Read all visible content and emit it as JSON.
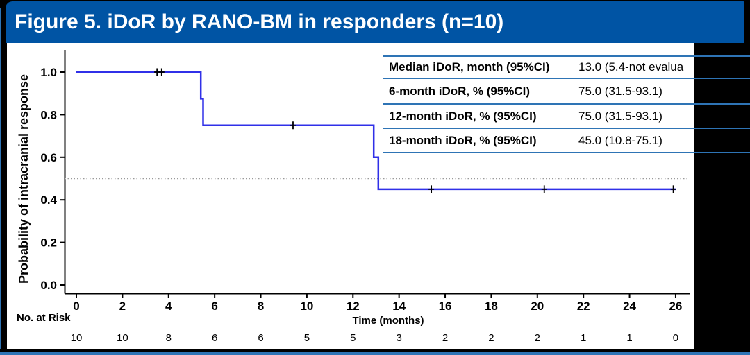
{
  "header": {
    "title": "Figure 5. iDoR by RANO-BM in responders (n=10)",
    "bar_color": "#0054A4",
    "text_color": "#FFFFFF"
  },
  "stats_table": {
    "rows": [
      {
        "label": "Median iDoR, month (95%CI)",
        "value": "13.0 (5.4-not evalua"
      },
      {
        "label": "6-month iDoR, % (95%CI)",
        "value": "75.0 (31.5-93.1)"
      },
      {
        "label": "12-month iDoR, % (95%CI)",
        "value": "75.0 (31.5-93.1)"
      },
      {
        "label": "18-month iDoR, % (95%CI)",
        "value": "45.0 (10.8-75.1)"
      }
    ],
    "line_color": "#2E74B5"
  },
  "chart_data": {
    "type": "line",
    "variant": "kaplan-meier-step",
    "title": "",
    "xlabel": "Time (months)",
    "ylabel": "Probability of intracranial response",
    "xlim": [
      0,
      26
    ],
    "ylim": [
      0.0,
      1.0
    ],
    "grid": false,
    "legend": "none",
    "x_ticks": [
      0,
      2,
      4,
      6,
      8,
      10,
      12,
      14,
      16,
      18,
      20,
      22,
      24,
      26
    ],
    "y_tick_labels": [
      "1.0",
      "0.8",
      "0.6",
      "0.4",
      "0.2",
      "0.0"
    ],
    "reference_line_y": 0.5,
    "series": [
      {
        "name": "iDoR by RANO-BM responders",
        "color": "#3030E8",
        "step_points": [
          [
            0,
            1.0
          ],
          [
            5.4,
            1.0
          ],
          [
            5.4,
            0.875
          ],
          [
            5.5,
            0.875
          ],
          [
            5.5,
            0.75
          ],
          [
            12.9,
            0.75
          ],
          [
            12.9,
            0.6
          ],
          [
            13.1,
            0.6
          ],
          [
            13.1,
            0.45
          ],
          [
            26,
            0.45
          ]
        ],
        "censor_marks": [
          [
            3.5,
            1.0
          ],
          [
            3.7,
            1.0
          ],
          [
            9.4,
            0.75
          ],
          [
            15.4,
            0.45
          ],
          [
            20.3,
            0.45
          ],
          [
            25.9,
            0.45
          ]
        ]
      }
    ],
    "no_at_risk": {
      "label": "No. at Risk",
      "values": [
        10,
        10,
        8,
        6,
        6,
        5,
        5,
        3,
        2,
        2,
        2,
        1,
        1,
        0
      ]
    }
  },
  "colors": {
    "background": "#000000",
    "panel": "#FFFFFF",
    "frame_blue": "#2E74B5",
    "curve_blue": "#3030E8",
    "reference_dotted": "#999999"
  }
}
